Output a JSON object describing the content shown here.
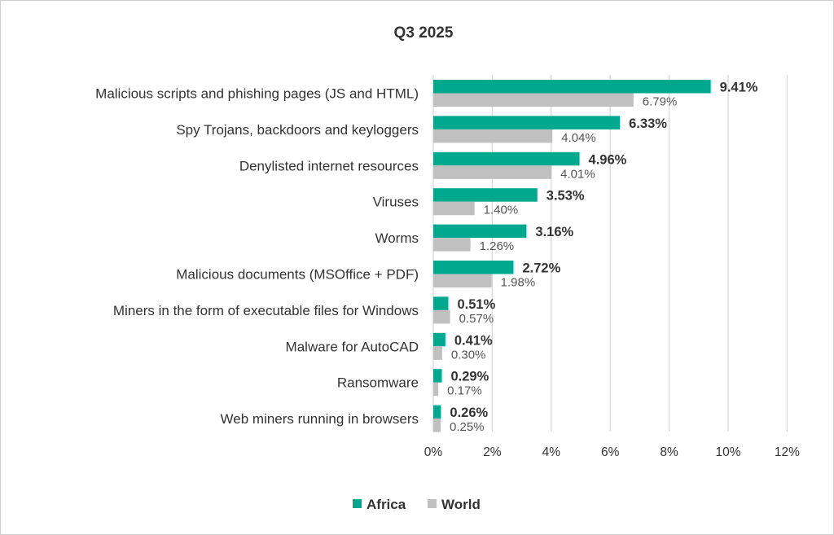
{
  "chart_data": {
    "type": "bar",
    "orientation": "horizontal",
    "title": "Q3 2025",
    "categories": [
      "Malicious scripts and phishing pages (JS and HTML)",
      "Spy Trojans, backdoors and keyloggers",
      "Denylisted internet resources",
      "Viruses",
      "Worms",
      "Malicious documents (MSOffice + PDF)",
      "Miners in the form of executable files for Windows",
      "Malware for AutoCAD",
      "Ransomware",
      "Web miners running in browsers"
    ],
    "series": [
      {
        "name": "Africa",
        "color": "#00a88e",
        "values": [
          9.41,
          6.33,
          4.96,
          3.53,
          3.16,
          2.72,
          0.51,
          0.41,
          0.29,
          0.26
        ],
        "labels": [
          "9.41%",
          "6.33%",
          "4.96%",
          "3.53%",
          "3.16%",
          "2.72%",
          "0.51%",
          "0.41%",
          "0.29%",
          "0.26%"
        ]
      },
      {
        "name": "World",
        "color": "#c0c0c0",
        "values": [
          6.79,
          4.04,
          4.01,
          1.4,
          1.26,
          1.98,
          0.57,
          0.3,
          0.17,
          0.25
        ],
        "labels": [
          "6.79%",
          "4.04%",
          "4.01%",
          "1.40%",
          "1.26%",
          "1.98%",
          "0.57%",
          "0.30%",
          "0.17%",
          "0.25%"
        ]
      }
    ],
    "xlim": [
      0,
      12
    ],
    "xticks": [
      0,
      2,
      4,
      6,
      8,
      10,
      12
    ],
    "xtick_labels": [
      "0%",
      "2%",
      "4%",
      "6%",
      "8%",
      "10%",
      "12%"
    ],
    "grid": true,
    "legend_position": "bottom-center",
    "gridline_color": "#d9d9d9"
  }
}
